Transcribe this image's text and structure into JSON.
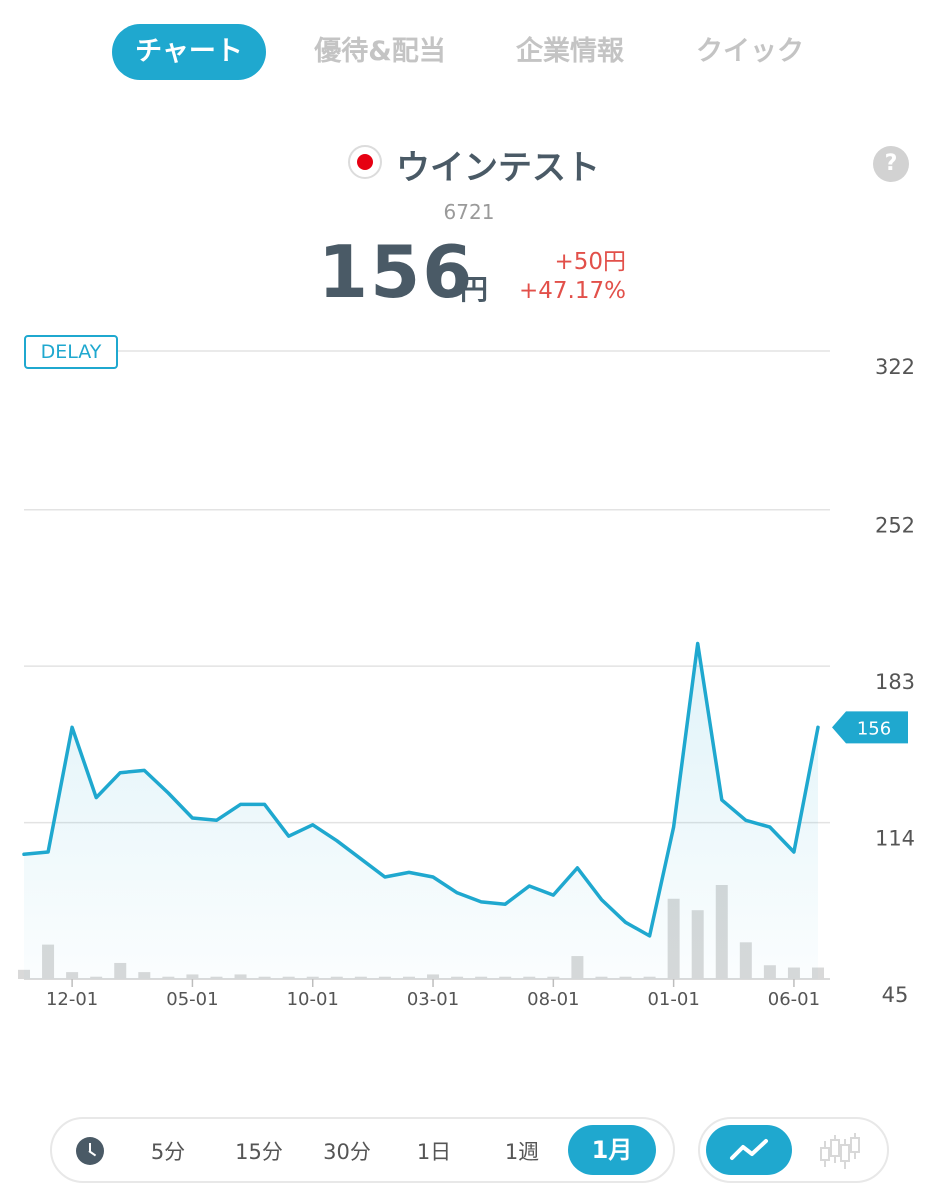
{
  "tabs": [
    {
      "label": "チャート",
      "active": true
    },
    {
      "label": "優待&配当",
      "active": false
    },
    {
      "label": "企業情報",
      "active": false
    },
    {
      "label": "クイック",
      "active": false
    }
  ],
  "header": {
    "name": "ウインテスト",
    "code": "6721",
    "price": "156",
    "unit": "円",
    "change_abs": "+50円",
    "change_pct": "+47.17%",
    "flag_icon": "japan-flag-icon",
    "help_label": "?"
  },
  "delay_label": "DELAY",
  "colors": {
    "accent": "#1fa8cf",
    "negative": "#e2504a",
    "volume": "#d9d9d9"
  },
  "chart_data": {
    "type": "line",
    "yticks": [
      322,
      252,
      183,
      114,
      45
    ],
    "ylim": [
      45,
      322
    ],
    "xticks": [
      "12-01",
      "05-01",
      "10-01",
      "03-01",
      "08-01",
      "01-01",
      "06-01"
    ],
    "xtick_index": [
      2,
      7,
      12,
      17,
      22,
      27,
      32
    ],
    "current_price_label": "156",
    "series": [
      {
        "values": [
          100,
          101,
          156,
          125,
          136,
          137,
          127,
          116,
          115,
          122,
          122,
          108,
          113,
          106,
          98,
          90,
          92,
          90,
          83,
          79,
          78,
          86,
          82,
          94,
          80,
          70,
          64,
          112,
          193,
          124,
          115,
          112,
          101,
          156
        ]
      }
    ],
    "volume": [
      4,
      15,
      3,
      1,
      7,
      3,
      1,
      2,
      1,
      2,
      1,
      1,
      1,
      1,
      1,
      1,
      1,
      2,
      1,
      1,
      1,
      1,
      1,
      10,
      1,
      1,
      1,
      35,
      30,
      41,
      16,
      6,
      5,
      5
    ]
  },
  "ranges": [
    {
      "label": "5分",
      "active": false
    },
    {
      "label": "15分",
      "active": false
    },
    {
      "label": "30分",
      "active": false
    },
    {
      "label": "1日",
      "active": false
    },
    {
      "label": "1週",
      "active": false
    },
    {
      "label": "1月",
      "active": true
    }
  ],
  "chart_types": [
    {
      "icon": "line-chart-icon",
      "active": true
    },
    {
      "icon": "candlestick-chart-icon",
      "active": false
    }
  ]
}
